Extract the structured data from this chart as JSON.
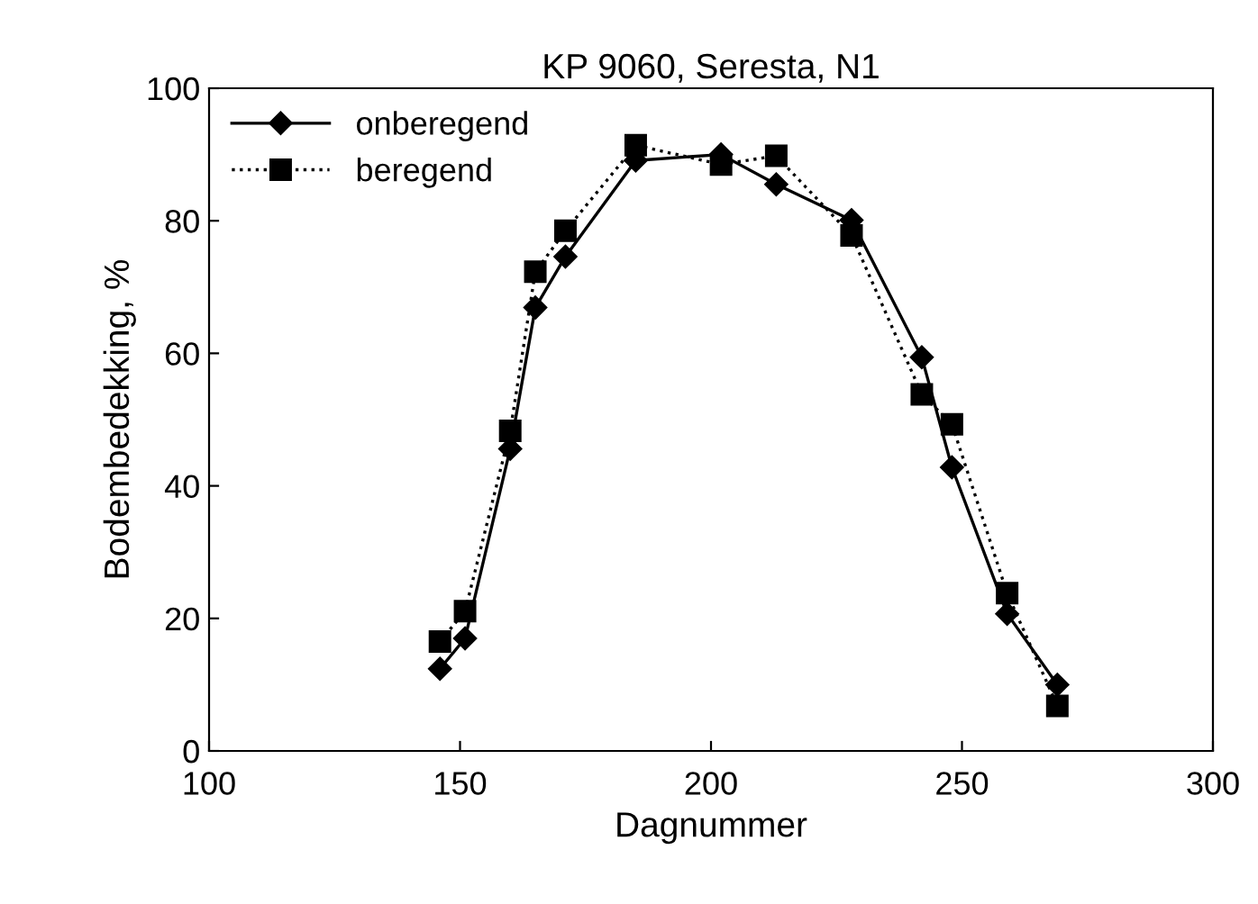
{
  "chart_data": {
    "type": "line",
    "title": "KP 9060, Seresta, N1",
    "xlabel": "Dagnummer",
    "ylabel": "Bodembedekking, %",
    "x": [
      146,
      151,
      160,
      165,
      171,
      185,
      202,
      213,
      228,
      242,
      248,
      259,
      269
    ],
    "series": [
      {
        "name": "onberegend",
        "color": "#000000",
        "marker": "diamond",
        "line_style": "solid",
        "values": [
          12.4,
          17.0,
          45.6,
          66.9,
          74.6,
          89.1,
          90.0,
          85.5,
          80.1,
          59.4,
          42.8,
          20.7,
          10.0
        ]
      },
      {
        "name": "beregend",
        "color": "#000000",
        "marker": "square",
        "line_style": "dotted",
        "values": [
          16.5,
          21.1,
          48.3,
          72.3,
          78.5,
          91.4,
          88.5,
          89.8,
          77.8,
          53.8,
          49.3,
          23.8,
          6.8
        ]
      }
    ],
    "xlim": [
      100,
      300
    ],
    "xticks": [
      100,
      150,
      200,
      250,
      300
    ],
    "ylim": [
      0,
      100
    ],
    "yticks": [
      0,
      20,
      40,
      60,
      80,
      100
    ],
    "grid": false,
    "legend": "top left"
  }
}
